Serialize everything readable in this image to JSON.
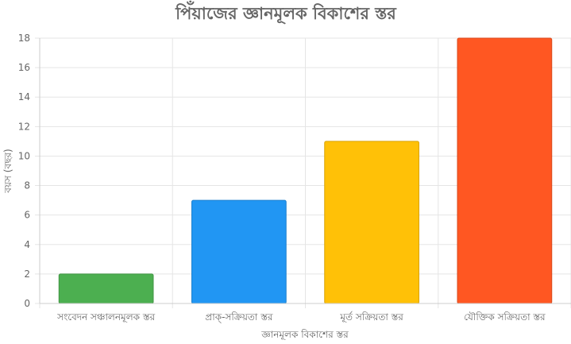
{
  "chart_data": {
    "type": "bar",
    "title": "পিঁয়াজের জ্ঞানমূলক বিকাশের স্তর",
    "xlabel": "জ্ঞানমূলক বিকাশের স্তর",
    "ylabel": "বয়স (বছর)",
    "categories": [
      "সংবেদন সঞ্চালনমূলক স্তর",
      "প্রাক্-সক্রিয়তা স্তর",
      "মূর্ত সক্রিয়তা স্তর",
      "যৌক্তিক সক্রিয়তা স্তর"
    ],
    "values": [
      2,
      7,
      11,
      18
    ],
    "colors": [
      "#4CAF50",
      "#2196F3",
      "#FFC107",
      "#FF5722"
    ],
    "ylim": [
      0,
      18
    ],
    "yticks": [
      0,
      2,
      4,
      6,
      8,
      10,
      12,
      14,
      16,
      18
    ],
    "grid": true,
    "legend": "none"
  }
}
